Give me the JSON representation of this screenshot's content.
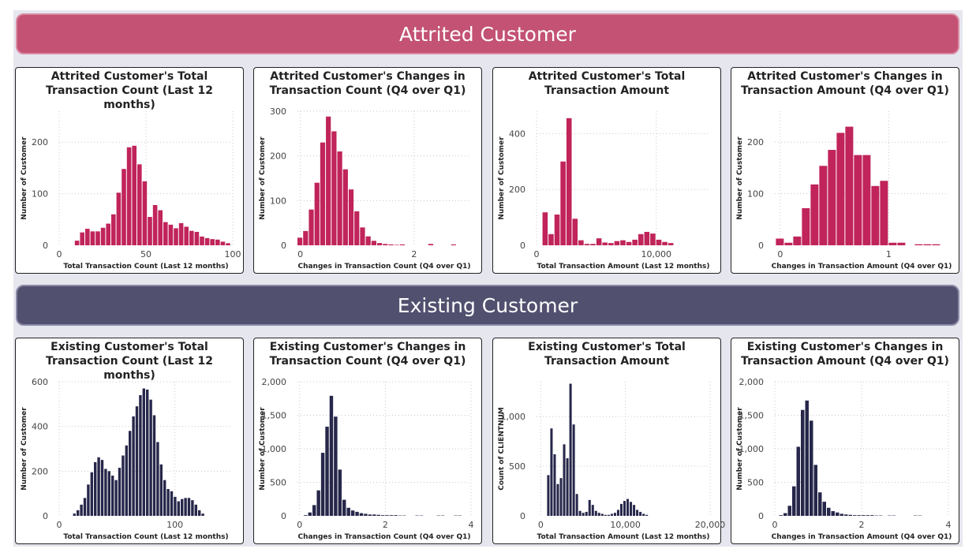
{
  "sections": {
    "attrited": {
      "title": "Attrited Customer",
      "color": "#c0245a"
    },
    "existing": {
      "title": "Existing Customer",
      "color": "#26274a"
    }
  },
  "chart_data": [
    {
      "id": "a1",
      "type": "bar",
      "section": "attrited",
      "title": "Attrited Customer's Total Transaction Count (Last 12 months)",
      "xlabel": "Total Transaction Count (Last 12 months)",
      "ylabel": "Number of Customer",
      "xlim": [
        0,
        100
      ],
      "ylim": [
        0,
        260
      ],
      "xticks": [
        {
          "v": 0,
          "label": "0"
        },
        {
          "v": 50,
          "label": "50"
        },
        {
          "v": 100,
          "label": "100"
        }
      ],
      "yticks": [
        {
          "v": 0,
          "label": "0"
        },
        {
          "v": 100,
          "label": "100"
        },
        {
          "v": 200,
          "label": "200"
        }
      ],
      "bin_start": 9,
      "bin_width": 3,
      "values": [
        9,
        25,
        32,
        27,
        27,
        34,
        42,
        60,
        102,
        148,
        190,
        193,
        157,
        124,
        55,
        78,
        68,
        45,
        40,
        33,
        43,
        36,
        28,
        26,
        17,
        14,
        12,
        11,
        7,
        4
      ]
    },
    {
      "id": "a2",
      "type": "bar",
      "section": "attrited",
      "title": "Attrited Customer's Changes in Transaction Count (Q4 over Q1)",
      "xlabel": "Changes in Transaction Count (Q4 over Q1)",
      "ylabel": "Number of Customer",
      "xlim": [
        -0.05,
        3
      ],
      "ylim": [
        0,
        300
      ],
      "xticks": [
        {
          "v": 0,
          "label": "0"
        },
        {
          "v": 2,
          "label": "2"
        }
      ],
      "yticks": [
        {
          "v": 0,
          "label": "0"
        },
        {
          "v": 100,
          "label": "100"
        },
        {
          "v": 200,
          "label": "200"
        },
        {
          "v": 300,
          "label": "300"
        }
      ],
      "bin_start": -0.05,
      "bin_width": 0.1,
      "values": [
        17,
        32,
        80,
        140,
        230,
        288,
        255,
        210,
        170,
        125,
        76,
        40,
        20,
        10,
        5,
        3,
        2,
        1,
        2,
        0,
        0,
        0,
        0,
        3,
        0,
        0,
        0,
        2
      ],
      "note_last_bins": "sparse tail near 2.3–2.5"
    },
    {
      "id": "a3",
      "type": "bar",
      "section": "attrited",
      "title": "Attrited Customer's Total Transaction Amount",
      "xlabel": "Total Transaction Amount (Last 12 months)",
      "ylabel": "Number of Customer",
      "xlim": [
        0,
        14500
      ],
      "ylim": [
        0,
        480
      ],
      "xticks": [
        {
          "v": 0,
          "label": "0"
        },
        {
          "v": 10000,
          "label": "10,000"
        }
      ],
      "yticks": [
        {
          "v": 0,
          "label": "0"
        },
        {
          "v": 200,
          "label": "200"
        },
        {
          "v": 400,
          "label": "400"
        }
      ],
      "bin_start": 500,
      "bin_width": 500,
      "values": [
        118,
        40,
        110,
        300,
        455,
        95,
        18,
        5,
        5,
        25,
        10,
        8,
        15,
        18,
        12,
        20,
        40,
        48,
        42,
        20,
        12,
        8
      ]
    },
    {
      "id": "a4",
      "type": "bar",
      "section": "attrited",
      "title": "Attrited Customer's Changes in Transaction Amount (Q4 over Q1)",
      "xlabel": "Changes in Transaction Amount (Q4 over Q1)",
      "ylabel": "Number of Customer",
      "xlim": [
        -0.05,
        1.55
      ],
      "ylim": [
        0,
        260
      ],
      "xticks": [
        {
          "v": 0,
          "label": "0"
        },
        {
          "v": 1,
          "label": "1"
        }
      ],
      "yticks": [
        {
          "v": 0,
          "label": "0"
        },
        {
          "v": 100,
          "label": "100"
        },
        {
          "v": 200,
          "label": "200"
        }
      ],
      "bin_start": -0.04,
      "bin_width": 0.08,
      "values": [
        13,
        5,
        17,
        72,
        118,
        154,
        185,
        218,
        230,
        175,
        175,
        115,
        125,
        5,
        5,
        0,
        2,
        2,
        2
      ]
    },
    {
      "id": "e1",
      "type": "bar",
      "section": "existing",
      "title": "Existing Customer's Total Transaction Count (Last 12 months)",
      "xlabel": "Total Transaction Count (Last 12 months)",
      "ylabel": "Number of Customer",
      "xlim": [
        0,
        150
      ],
      "ylim": [
        0,
        600
      ],
      "xticks": [
        {
          "v": 0,
          "label": "0"
        },
        {
          "v": 100,
          "label": "100"
        }
      ],
      "yticks": [
        {
          "v": 0,
          "label": "0"
        },
        {
          "v": 200,
          "label": "200"
        },
        {
          "v": 400,
          "label": "400"
        },
        {
          "v": 600,
          "label": "600"
        }
      ],
      "bin_start": 12,
      "bin_width": 3,
      "values": [
        10,
        25,
        50,
        80,
        140,
        195,
        240,
        262,
        250,
        210,
        200,
        180,
        160,
        215,
        270,
        315,
        380,
        445,
        490,
        540,
        570,
        565,
        520,
        450,
        330,
        230,
        160,
        120,
        110,
        85,
        65,
        75,
        80,
        80,
        70,
        50,
        25,
        10
      ]
    },
    {
      "id": "e2",
      "type": "bar",
      "section": "existing",
      "title": "Existing Customer's Changes in Transaction Count (Q4 over Q1)",
      "xlabel": "Changes in Transaction Count (Q4 over Q1)",
      "ylabel": "Number of Customer",
      "xlim": [
        -0.05,
        4
      ],
      "ylim": [
        0,
        2000
      ],
      "xticks": [
        {
          "v": 0,
          "label": "0"
        },
        {
          "v": 2,
          "label": "2"
        },
        {
          "v": 4,
          "label": "4"
        }
      ],
      "yticks": [
        {
          "v": 0,
          "label": "0"
        },
        {
          "v": 500,
          "label": "500"
        },
        {
          "v": 1000,
          "label": "1,000"
        },
        {
          "v": 1500,
          "label": "1,500"
        },
        {
          "v": 2000,
          "label": "2,000"
        }
      ],
      "bin_start": 0.1,
      "bin_width": 0.1,
      "values": [
        10,
        50,
        160,
        380,
        940,
        1330,
        1790,
        1480,
        690,
        240,
        120,
        80,
        60,
        40,
        30,
        20,
        20,
        15,
        10,
        10,
        10,
        10,
        5,
        5,
        0,
        0,
        5,
        5,
        0,
        0,
        0,
        5,
        5,
        0,
        0,
        5,
        5
      ]
    },
    {
      "id": "e3",
      "type": "bar",
      "section": "existing",
      "title": "Existing Customer's Total Transaction Amount",
      "xlabel": "Total Transaction Amount (Last 12 months)",
      "ylabel": "Count of CLIENTNUM",
      "xlim": [
        -500,
        20000
      ],
      "ylim": [
        0,
        1350
      ],
      "xticks": [
        {
          "v": 0,
          "label": "0"
        },
        {
          "v": 10000,
          "label": "10,000"
        },
        {
          "v": 20000,
          "label": "20,000"
        }
      ],
      "yticks": [
        {
          "v": 0,
          "label": "0"
        },
        {
          "v": 500,
          "label": "500"
        },
        {
          "v": 1000,
          "label": "1,000"
        }
      ],
      "bin_start": 750,
      "bin_width": 375,
      "values": [
        410,
        880,
        620,
        320,
        380,
        720,
        580,
        1330,
        920,
        220,
        50,
        30,
        40,
        160,
        110,
        50,
        30,
        20,
        10,
        10,
        20,
        30,
        60,
        120,
        150,
        170,
        140,
        110,
        60,
        40,
        20,
        10
      ]
    },
    {
      "id": "e4",
      "type": "bar",
      "section": "existing",
      "title": "Existing Customer's Changes in Transaction Amount (Q4 over Q1)",
      "xlabel": "Changes in Transaction Amount (Q4 over Q1)",
      "ylabel": "Number of Customer",
      "xlim": [
        0,
        4
      ],
      "ylim": [
        0,
        2000
      ],
      "xticks": [
        {
          "v": 0,
          "label": "0"
        },
        {
          "v": 2,
          "label": "2"
        },
        {
          "v": 4,
          "label": "4"
        }
      ],
      "yticks": [
        {
          "v": 0,
          "label": "0"
        },
        {
          "v": 500,
          "label": "500"
        },
        {
          "v": 1000,
          "label": "1,000"
        },
        {
          "v": 1500,
          "label": "1,500"
        },
        {
          "v": 2000,
          "label": "2,000"
        }
      ],
      "bin_start": 0.1,
      "bin_width": 0.1,
      "values": [
        10,
        40,
        150,
        440,
        1030,
        1580,
        1720,
        1420,
        760,
        350,
        210,
        120,
        70,
        50,
        30,
        20,
        15,
        10,
        10,
        10,
        10,
        10,
        5,
        5,
        0,
        5,
        5,
        0,
        0,
        0,
        0,
        5,
        5
      ]
    }
  ]
}
